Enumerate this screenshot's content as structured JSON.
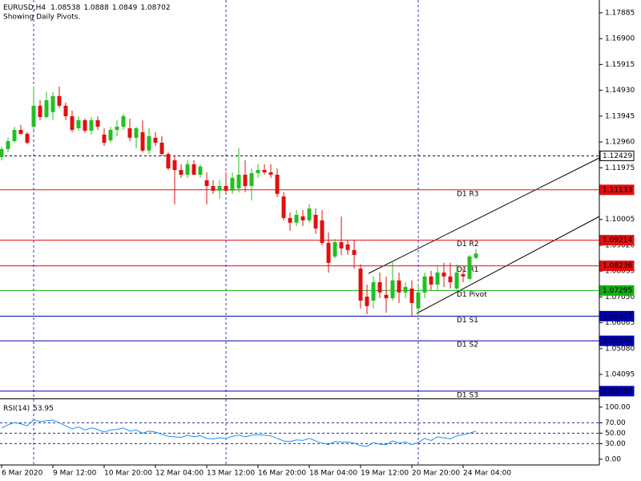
{
  "chart_data": [
    {
      "type": "candlestick",
      "title": "EURUSD,H4",
      "subtitle": "Showing Daily Pivots.",
      "categories": [
        "6 Mar 2020",
        null,
        null,
        null,
        null,
        null,
        null,
        null,
        "9 Mar 12:00",
        null,
        null,
        null,
        null,
        null,
        null,
        null,
        "10 Mar 20:00",
        null,
        null,
        null,
        null,
        null,
        null,
        null,
        "12 Mar 04:00",
        null,
        null,
        null,
        null,
        null,
        null,
        null,
        "13 Mar 12:00",
        null,
        null,
        null,
        null,
        null,
        null,
        null,
        "16 Mar 20:00",
        null,
        null,
        null,
        null,
        null,
        null,
        null,
        "18 Mar 04:00",
        null,
        null,
        null,
        null,
        null,
        null,
        null,
        "19 Mar 12:00",
        null,
        null,
        null,
        null,
        null,
        null,
        null,
        "20 Mar 20:00",
        null,
        null,
        null,
        null,
        null,
        null,
        null,
        "24 Mar 04:00",
        null,
        null
      ],
      "open": [
        1.1238,
        1.1269,
        1.1299,
        1.1342,
        1.1327,
        1.1354,
        1.1434,
        1.1391,
        1.141,
        1.1471,
        1.1434,
        1.1394,
        1.1348,
        1.1379,
        1.1339,
        1.1379,
        1.1324,
        1.1302,
        1.1342,
        1.1354,
        1.1348,
        1.1312,
        1.1333,
        1.1263,
        1.1312,
        1.1293,
        1.125,
        1.1226,
        1.1189,
        1.1171,
        1.1211,
        1.1171,
        1.115,
        1.1128,
        1.111,
        1.1128,
        1.111,
        1.1119,
        1.1171,
        1.1128,
        1.1177,
        1.1189,
        1.118,
        1.1171,
        1.1088,
        1.1006,
        1.0988,
        1.1012,
        1.0997,
        1.1018,
        1.0997,
        1.0911,
        1.0859,
        1.0914,
        1.0905,
        1.0884,
        1.0813,
        1.0706,
        1.0691,
        1.0761,
        1.0713,
        1.07,
        1.0768,
        1.0722,
        1.0737,
        1.0661,
        1.0722,
        1.0783,
        1.0752,
        1.0798,
        1.0783,
        1.0737,
        1.0792,
        1.0774,
        1.08538
      ],
      "high": [
        1.1278,
        1.1312,
        1.1354,
        1.1361,
        1.1333,
        1.1507,
        1.1455,
        1.1486,
        1.1486,
        1.1507,
        1.1446,
        1.1416,
        1.1394,
        1.1385,
        1.1391,
        1.1394,
        1.1348,
        1.1354,
        1.1379,
        1.1403,
        1.1385,
        1.1354,
        1.1379,
        1.1348,
        1.1333,
        1.1318,
        1.1256,
        1.1241,
        1.1211,
        1.1226,
        1.1226,
        1.1211,
        1.118,
        1.115,
        1.115,
        1.118,
        1.118,
        1.1272,
        1.1226,
        1.1195,
        1.1211,
        1.1211,
        1.1211,
        1.1195,
        1.1104,
        1.1027,
        1.1036,
        1.1036,
        1.1058,
        1.1042,
        1.1036,
        1.0951,
        1.0926,
        1.1012,
        1.092,
        1.092,
        1.0829,
        1.0752,
        1.0783,
        1.0798,
        1.0783,
        1.0844,
        1.0798,
        1.0761,
        1.0768,
        1.0752,
        1.0798,
        1.0804,
        1.0822,
        1.0835,
        1.0835,
        1.0829,
        1.0813,
        1.0865,
        1.0888
      ],
      "low": [
        1.1226,
        1.1256,
        1.1293,
        1.1324,
        1.1287,
        1.1342,
        1.1379,
        1.1385,
        1.1379,
        1.1425,
        1.1379,
        1.1333,
        1.1339,
        1.133,
        1.1324,
        1.1342,
        1.1281,
        1.1293,
        1.1318,
        1.1342,
        1.1299,
        1.1272,
        1.1256,
        1.125,
        1.1281,
        1.1241,
        1.1189,
        1.1058,
        1.1159,
        1.1159,
        1.1171,
        1.1159,
        1.1058,
        1.1098,
        1.1079,
        1.1098,
        1.1098,
        1.1104,
        1.1104,
        1.1073,
        1.1159,
        1.1171,
        1.1159,
        1.1085,
        1.0997,
        1.0957,
        1.0975,
        1.0975,
        1.0988,
        1.0945,
        1.0902,
        1.0798,
        1.0853,
        1.0865,
        1.0865,
        1.0813,
        1.0661,
        1.0639,
        1.0661,
        1.07,
        1.0645,
        1.0691,
        1.0682,
        1.07,
        1.063,
        1.063,
        1.07,
        1.0731,
        1.0731,
        1.0743,
        1.0737,
        1.0731,
        1.0761,
        1.0768,
        1.0849
      ],
      "close": [
        1.1269,
        1.1299,
        1.1342,
        1.1327,
        1.1293,
        1.1434,
        1.1391,
        1.1455,
        1.1471,
        1.1434,
        1.1394,
        1.1342,
        1.1379,
        1.1339,
        1.1379,
        1.1354,
        1.1293,
        1.1342,
        1.1354,
        1.1394,
        1.1312,
        1.1348,
        1.1263,
        1.1318,
        1.1293,
        1.125,
        1.1195,
        1.1189,
        1.1171,
        1.1211,
        1.1171,
        1.1202,
        1.1128,
        1.111,
        1.1128,
        1.111,
        1.1159,
        1.1171,
        1.1128,
        1.1177,
        1.1189,
        1.118,
        1.1171,
        1.1098,
        1.1006,
        1.0988,
        1.1018,
        1.0997,
        1.1042,
        1.0966,
        1.0911,
        1.0835,
        1.0914,
        1.089,
        1.0884,
        1.0865,
        1.0691,
        1.067,
        1.0761,
        1.0722,
        1.07,
        1.0768,
        1.0722,
        1.0743,
        1.0682,
        1.0722,
        1.0783,
        1.0752,
        1.0798,
        1.0783,
        1.0761,
        1.0798,
        1.0783,
        1.0859,
        1.08702
      ],
      "up_color": "#22c022",
      "down_color": "#e01010",
      "ylim": [
        1.0324,
        1.1825
      ],
      "yticks": [
        1.17885,
        {
          "value": 1.169,
          "label": "1.16900"
        },
        1.15915,
        {
          "value": 1.1493,
          "label": "1.14930"
        },
        1.13945,
        {
          "value": 1.1296,
          "label": "1.12960"
        },
        1.11975,
        1.10005,
        {
          "value": 1.0902,
          "label": "1.09020"
        },
        1.08035,
        {
          "value": 1.0705,
          "label": "1.07050"
        },
        1.06065,
        {
          "value": 1.0508,
          "label": "1.05080"
        },
        1.04095
      ],
      "price_lines": [
        {
          "value": 1.12429,
          "color": "#000000",
          "style": "dashed"
        },
        {
          "name": "D1 R3",
          "value": 1.11133,
          "color": "#e01010",
          "style": "solid"
        },
        {
          "name": "D1 R2",
          "value": 1.09214,
          "color": "#e01010",
          "style": "solid"
        },
        {
          "name": "D1 R1",
          "value": 1.08236,
          "color": "#e01010",
          "style": "solid"
        },
        {
          "name": "D1 Pivot",
          "value": 1.07295,
          "color": "#10b010",
          "style": "solid"
        },
        {
          "name": "D1 S1",
          "value": 1.06317,
          "color": "#0000b0",
          "style": "solid"
        },
        {
          "name": "D1 S2",
          "value": 1.05376,
          "color": "#0000b0",
          "style": "solid"
        },
        {
          "name": "D1 S3",
          "value": 1.03457,
          "color": "#0000b0",
          "style": "solid"
        }
      ]
    },
    {
      "type": "line",
      "title": "RSI(14)",
      "color": "#1e90ff",
      "values": [
        60,
        66,
        70,
        68,
        64,
        76,
        72,
        74,
        75,
        70,
        64,
        58,
        62,
        56,
        60,
        57,
        52,
        56,
        57,
        60,
        54,
        56,
        50,
        54,
        52,
        48,
        44,
        43,
        42,
        46,
        43,
        45,
        40,
        39,
        41,
        40,
        44,
        46,
        43,
        46,
        47,
        46,
        45,
        40,
        35,
        34,
        37,
        36,
        40,
        35,
        31,
        28,
        34,
        33,
        33,
        31,
        26,
        25,
        32,
        29,
        28,
        35,
        31,
        33,
        28,
        32,
        40,
        36,
        43,
        41,
        39,
        45,
        47,
        50,
        53.95
      ],
      "ylim": [
        -11,
        112
      ],
      "yticks": [
        {
          "value": 100,
          "label": "100.00"
        },
        {
          "value": 70,
          "label": "70.00"
        },
        {
          "value": 50,
          "label": "50.00"
        },
        {
          "value": 30,
          "label": "30.00"
        },
        {
          "value": 0,
          "label": "0.00"
        }
      ]
    }
  ]
}
